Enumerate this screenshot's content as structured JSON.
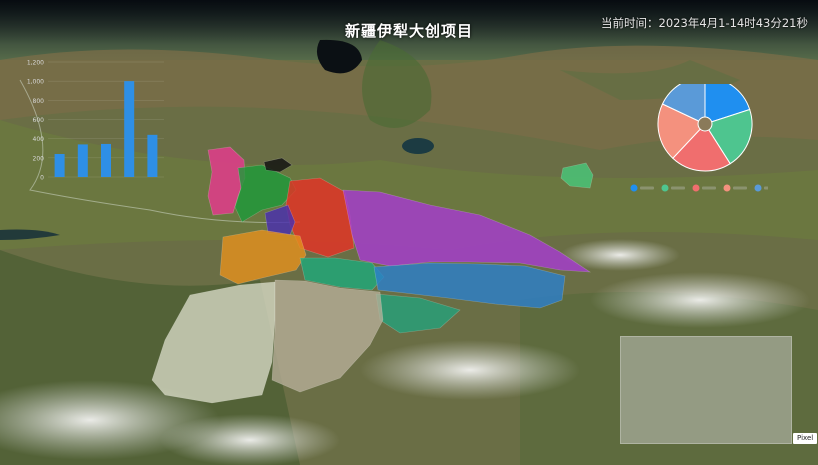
{
  "header": {
    "title": "新疆伊犁大创项目",
    "time_label": "当前时间：",
    "time_value": "2023年4月1-14时43分21秒"
  },
  "map": {
    "pixel_button": "Pixel"
  },
  "regions": [
    {
      "color": "#e7398f"
    },
    {
      "color": "#1f9a3a"
    },
    {
      "color": "#e53226"
    },
    {
      "color": "#4a2fb0"
    },
    {
      "color": "#a63ccf"
    },
    {
      "color": "#e3901f"
    },
    {
      "color": "#1ea87a"
    },
    {
      "color": "#2c7fc9"
    },
    {
      "color": "#26a07a"
    },
    {
      "color": "#d9dbc6"
    },
    {
      "color": "#b8b09a"
    },
    {
      "color": "#111111"
    },
    {
      "color": "#48c77a"
    }
  ],
  "chart_data": [
    {
      "type": "bar",
      "categories": [
        "",
        "",
        "",
        "",
        ""
      ],
      "values": [
        240,
        340,
        345,
        1000,
        440
      ],
      "ylim": [
        0,
        1200
      ],
      "yticks": [
        "1,200",
        "1,000",
        "800",
        "600",
        "400",
        "200",
        "0"
      ],
      "color": "#2e8fe6",
      "grid": true
    },
    {
      "type": "pie",
      "values": [
        20,
        21,
        21,
        20,
        18
      ],
      "colors": [
        "#1f8ff0",
        "#4ec58f",
        "#f06e6e",
        "#f4917e",
        "#5a9ad8"
      ],
      "legend_colors": [
        "#1f8ff0",
        "#4ec58f",
        "#f06e6e",
        "#f4917e",
        "#5a9ad8"
      ],
      "legend_position": "bottom"
    }
  ]
}
